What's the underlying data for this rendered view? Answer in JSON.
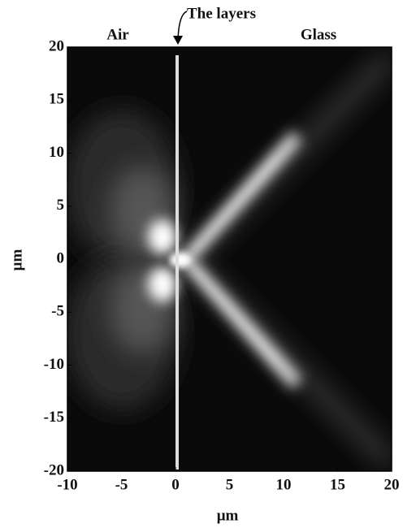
{
  "chart_data": {
    "type": "field-map",
    "annotations": [
      "Air",
      "Glass",
      "The layers"
    ],
    "xlabel": "μm",
    "ylabel": "μm",
    "xlim": [
      -10,
      20
    ],
    "ylim": [
      -20,
      20
    ],
    "xticks": [
      -10,
      -5,
      0,
      5,
      10,
      15,
      20
    ],
    "yticks": [
      -20,
      -15,
      -10,
      -5,
      0,
      5,
      10,
      15,
      20
    ]
  }
}
